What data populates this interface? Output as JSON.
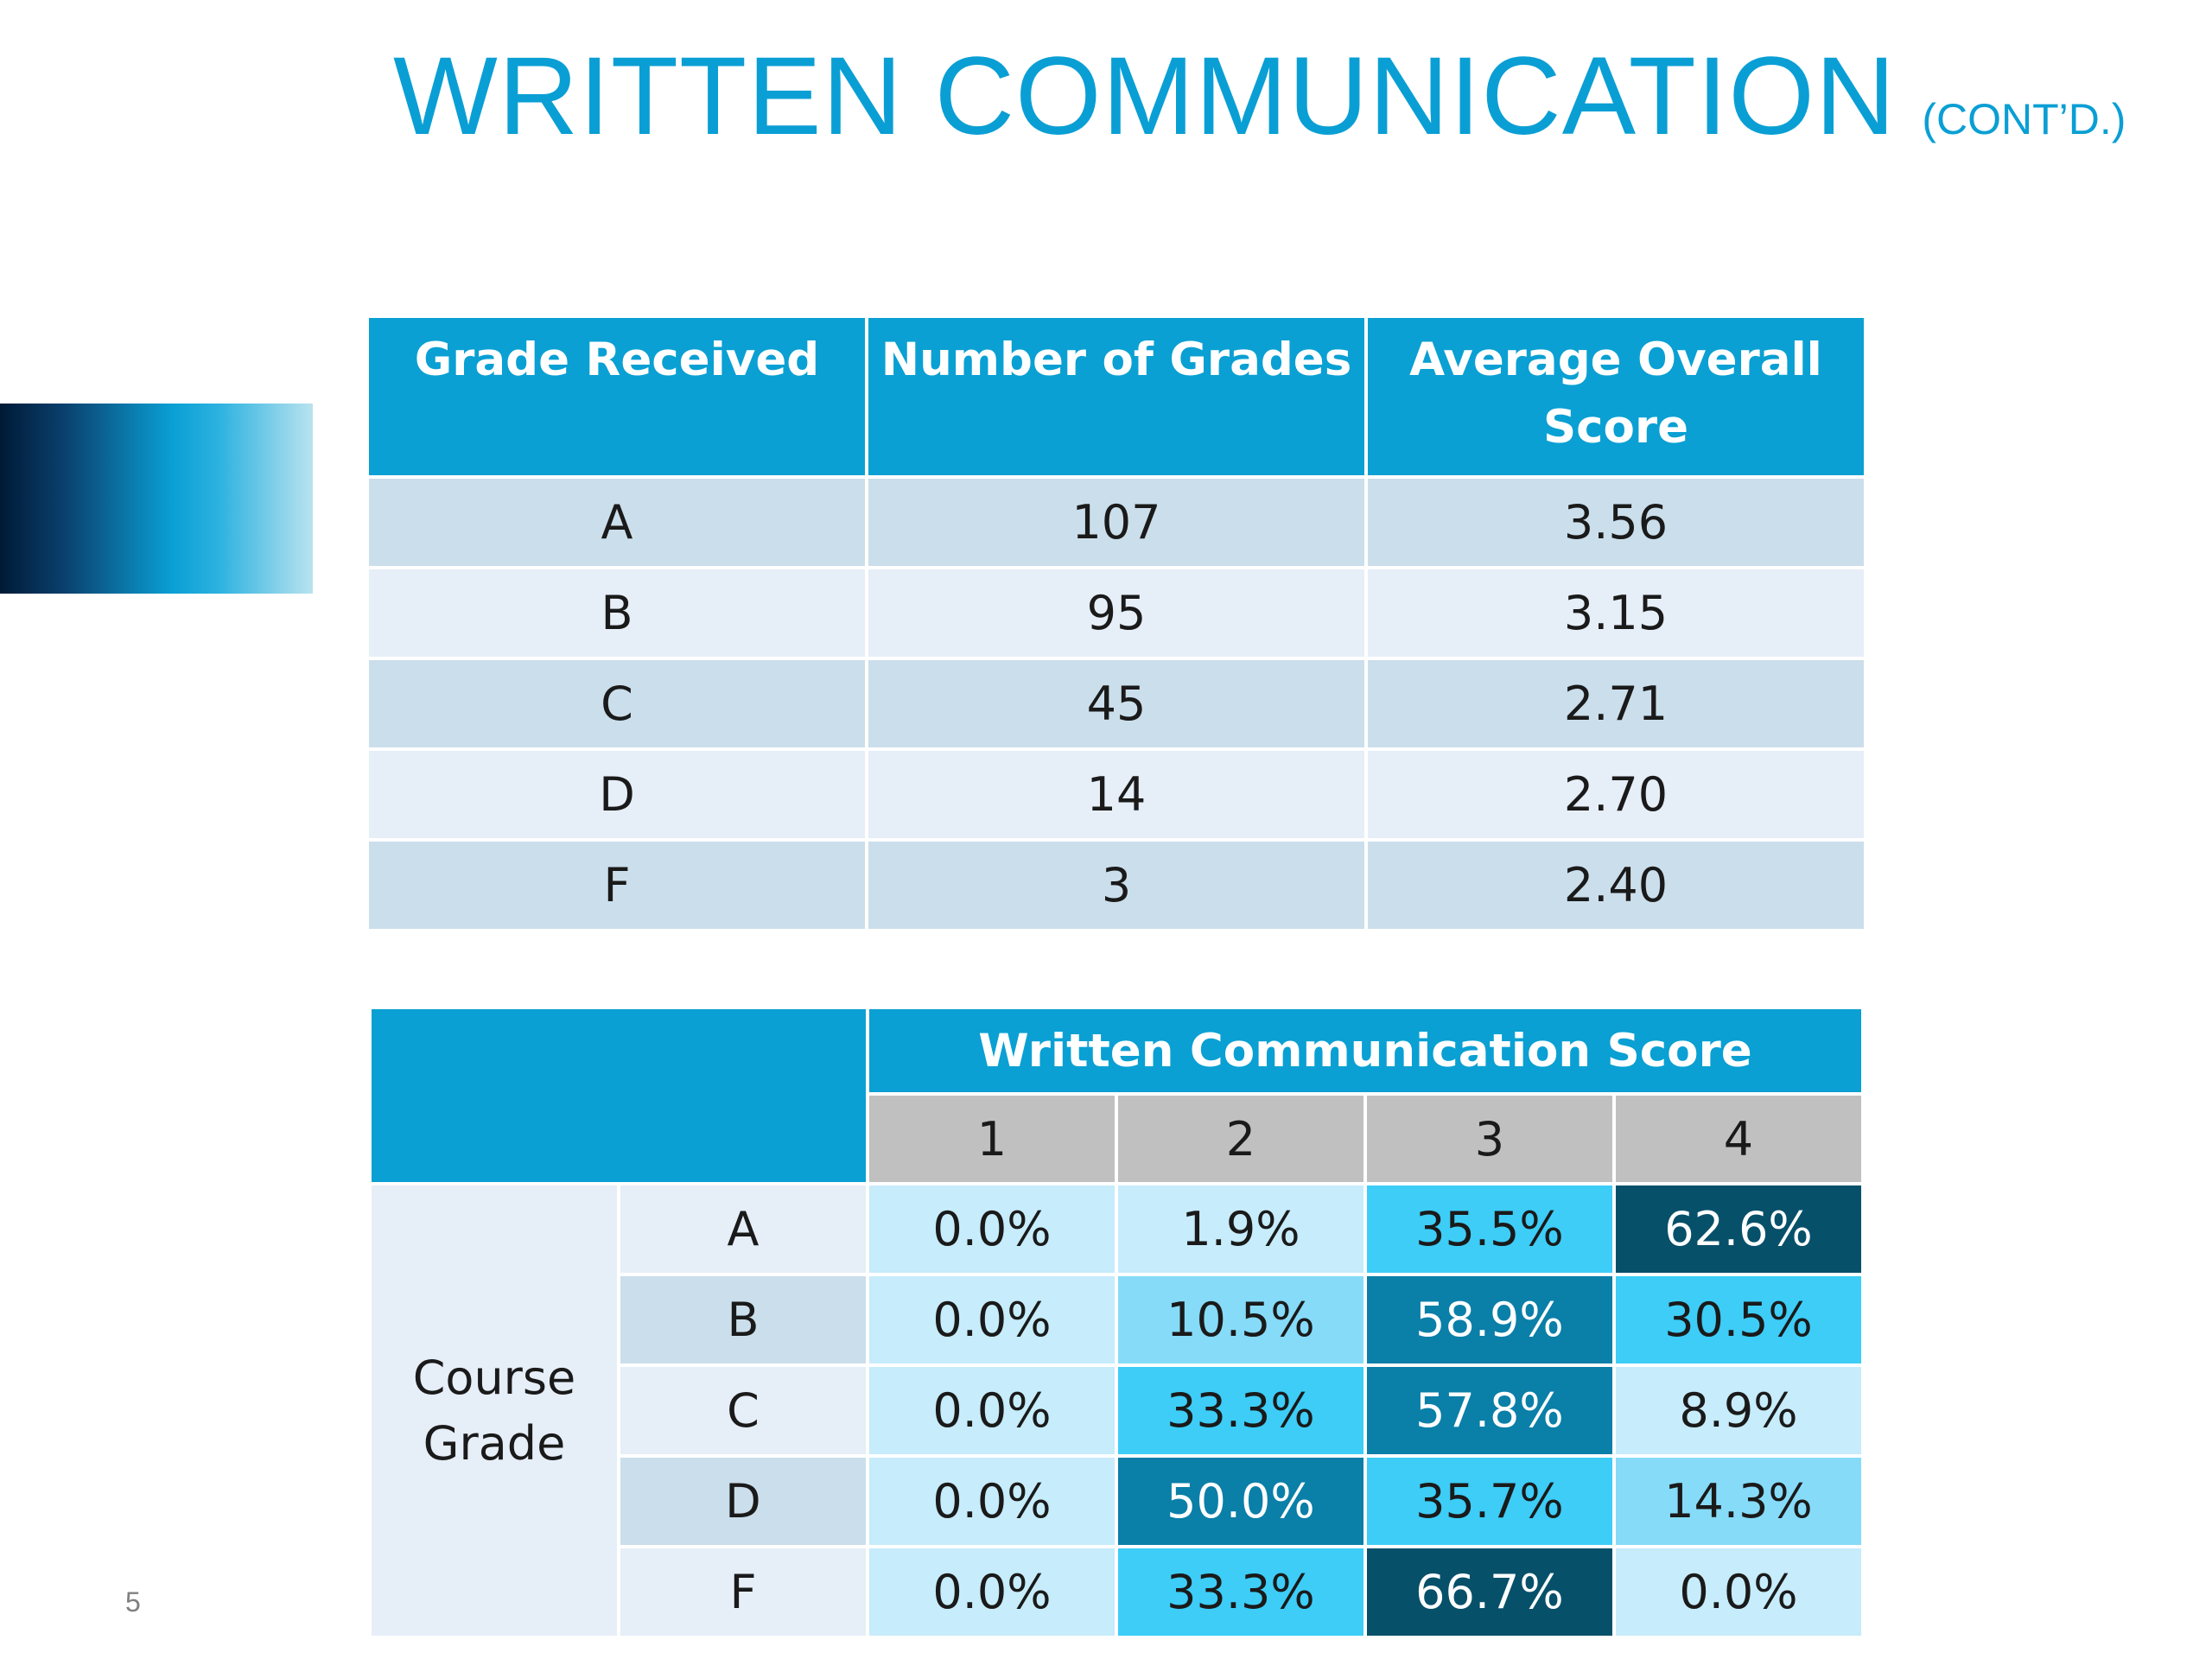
{
  "title": {
    "main": "WRITTEN COMMUNICATION",
    "sub": "(CONT’D.)"
  },
  "page_number": "5",
  "grade_table": {
    "headers": [
      "Grade Received",
      "Number of Grades",
      "Average Overall Score"
    ],
    "rows": [
      {
        "grade": "A",
        "count": "107",
        "avg": "3.56"
      },
      {
        "grade": "B",
        "count": "95",
        "avg": "3.15"
      },
      {
        "grade": "C",
        "count": "45",
        "avg": "2.71"
      },
      {
        "grade": "D",
        "count": "14",
        "avg": "2.70"
      },
      {
        "grade": "F",
        "count": "3",
        "avg": "2.40"
      }
    ]
  },
  "score_table": {
    "header": "Written Communication Score",
    "score_columns": [
      "1",
      "2",
      "3",
      "4"
    ],
    "row_group_label": "Course Grade",
    "rows": [
      {
        "grade": "A",
        "values": [
          "0.0%",
          "1.9%",
          "35.5%",
          "62.6%"
        ]
      },
      {
        "grade": "B",
        "values": [
          "0.0%",
          "10.5%",
          "58.9%",
          "30.5%"
        ]
      },
      {
        "grade": "C",
        "values": [
          "0.0%",
          "33.3%",
          "57.8%",
          "8.9%"
        ]
      },
      {
        "grade": "D",
        "values": [
          "0.0%",
          "50.0%",
          "35.7%",
          "14.3%"
        ]
      },
      {
        "grade": "F",
        "values": [
          "0.0%",
          "33.3%",
          "66.7%",
          "0.0%"
        ]
      }
    ],
    "colors": {
      "lvl0": "#c7ecfb",
      "lvl1": "#86dbf8",
      "lvl2": "#3dcdf7",
      "lvl3": "#0a7fa8",
      "lvl4": "#07506a"
    }
  }
}
